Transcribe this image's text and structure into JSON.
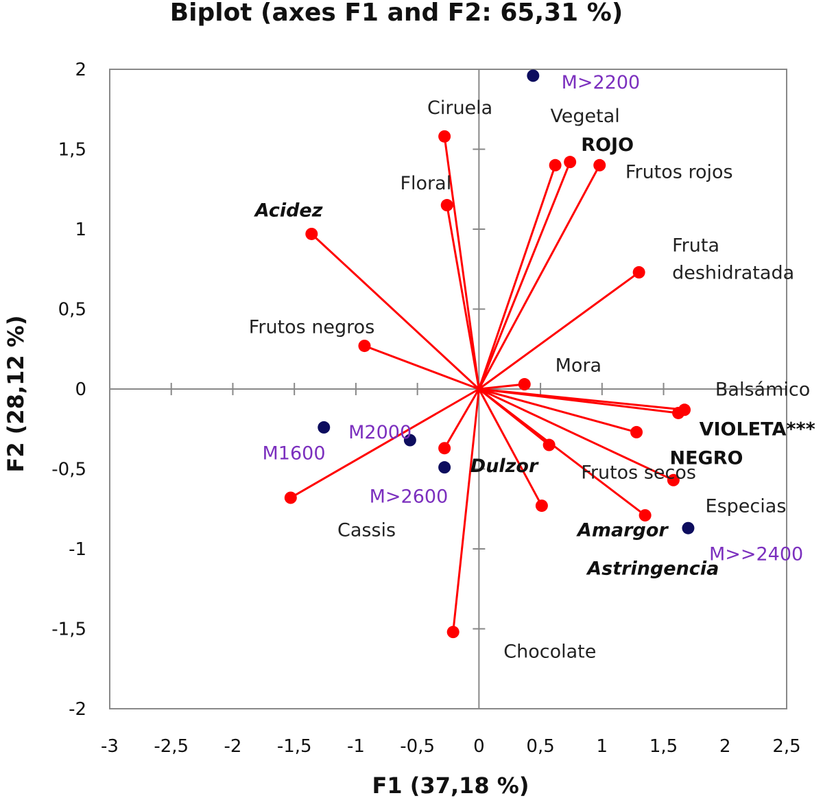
{
  "chart_data": {
    "type": "scatter",
    "title": "Biplot (axes F1 and F2: 65,31 %)",
    "xlabel": "F1 (37,18 %)",
    "ylabel": "F2 (28,12 %)",
    "xlim": [
      -3,
      2.5
    ],
    "ylim": [
      -2,
      2
    ],
    "x_ticks": [
      -3,
      -2.5,
      -2,
      -1.5,
      -1,
      -0.5,
      0,
      0.5,
      1,
      1.5,
      2,
      2.5
    ],
    "x_tick_labels": [
      "-3",
      "-2,5",
      "-2",
      "-1,5",
      "-1",
      "-0,5",
      "0",
      "0,5",
      "1",
      "1,5",
      "2",
      "2,5"
    ],
    "y_ticks": [
      -2,
      -1.5,
      -1,
      -0.5,
      0,
      0.5,
      1,
      1.5,
      2
    ],
    "y_tick_labels": [
      "-2",
      "-1,5",
      "-1",
      "-0,5",
      "0",
      "0,5",
      "1",
      "1,5",
      "2"
    ],
    "grid": false,
    "colors": {
      "variables": "#ff0000",
      "observations": "#0d0d5e",
      "observation_labels": "#7b2fbe"
    },
    "series": [
      {
        "kind": "variables",
        "points": [
          {
            "label": "Ciruela",
            "x": -0.28,
            "y": 1.58,
            "style": "normal",
            "lx": -0.42,
            "ly": 1.72
          },
          {
            "label": "Vegetal",
            "x": 0.62,
            "y": 1.4,
            "style": "normal",
            "lx": 0.58,
            "ly": 1.67
          },
          {
            "label": "ROJO",
            "x": 0.74,
            "y": 1.42,
            "style": "bold",
            "lx": 0.83,
            "ly": 1.49
          },
          {
            "label": "Frutos rojos",
            "x": 0.98,
            "y": 1.4,
            "style": "normal",
            "lx": 1.19,
            "ly": 1.32
          },
          {
            "label": "Floral",
            "x": -0.26,
            "y": 1.15,
            "style": "normal",
            "lx": -0.64,
            "ly": 1.25
          },
          {
            "label": "Acidez",
            "x": -1.36,
            "y": 0.97,
            "style": "bolditalic",
            "lx": -1.82,
            "ly": 1.08
          },
          {
            "label": "Fruta deshidratada",
            "x": 1.3,
            "y": 0.73,
            "style": "normal",
            "lines": [
              "Fruta",
              "deshidratada"
            ],
            "lx": 1.57,
            "ly": 0.86
          },
          {
            "label": "Frutos negros",
            "x": -0.93,
            "y": 0.27,
            "style": "normal",
            "lx": -1.87,
            "ly": 0.35
          },
          {
            "label": "Mora",
            "x": 0.37,
            "y": 0.03,
            "style": "normal",
            "lx": 0.62,
            "ly": 0.11
          },
          {
            "label": "Balsámico",
            "x": 1.67,
            "y": -0.13,
            "style": "normal",
            "lx": 1.92,
            "ly": -0.04
          },
          {
            "label": "VIOLETA***",
            "x": 1.62,
            "y": -0.15,
            "style": "bold",
            "lx": 1.79,
            "ly": -0.29
          },
          {
            "label": "NEGRO",
            "x": 1.28,
            "y": -0.27,
            "style": "bold",
            "lx": 1.55,
            "ly": -0.47
          },
          {
            "label": "Frutos secos",
            "x": 0.57,
            "y": -0.35,
            "style": "normal",
            "lx": 0.83,
            "ly": -0.56
          },
          {
            "label": "Especias",
            "x": 1.58,
            "y": -0.57,
            "style": "normal",
            "lx": 1.84,
            "ly": -0.77
          },
          {
            "label": "Amargor",
            "x": 1.35,
            "y": -0.79,
            "style": "bolditalic",
            "lx": 0.8,
            "ly": -0.92
          },
          {
            "label": "Dulzor",
            "x": -0.28,
            "y": -0.37,
            "style": "bolditalic",
            "lx": -0.07,
            "ly": -0.52
          },
          {
            "label": "Astringencia",
            "x": 0.51,
            "y": -0.73,
            "style": "bolditalic",
            "lx": 0.88,
            "ly": -1.16
          },
          {
            "label": "Cassis",
            "x": -1.53,
            "y": -0.68,
            "style": "normal",
            "lx": -1.15,
            "ly": -0.92
          },
          {
            "label": "Chocolate",
            "x": -0.21,
            "y": -1.52,
            "style": "normal",
            "lx": 0.2,
            "ly": -1.68
          }
        ]
      },
      {
        "kind": "observations",
        "points": [
          {
            "label": "M>2200",
            "x": 0.44,
            "y": 1.96,
            "lx": 0.67,
            "ly": 1.88
          },
          {
            "label": "M1600",
            "x": -1.26,
            "y": -0.24,
            "lx": -1.76,
            "ly": -0.44
          },
          {
            "label": "M2000",
            "x": -0.56,
            "y": -0.32,
            "lx": -1.06,
            "ly": -0.31
          },
          {
            "label": "M>2600",
            "x": -0.28,
            "y": -0.49,
            "lx": -0.89,
            "ly": -0.71
          },
          {
            "label": "M>>2400",
            "x": 1.7,
            "y": -0.87,
            "lx": 1.87,
            "ly": -1.07
          }
        ]
      }
    ]
  }
}
